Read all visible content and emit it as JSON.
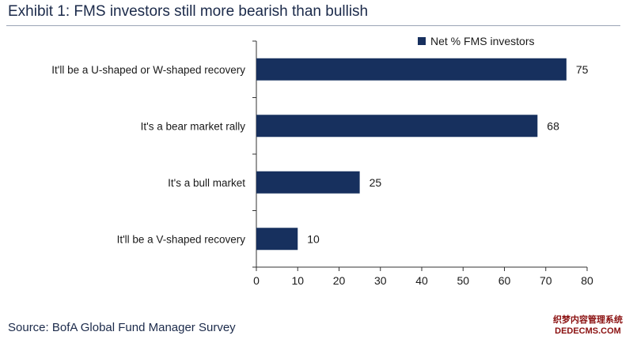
{
  "title": "Exhibit 1: FMS investors still more bearish than bullish",
  "source": "Source: BofA Global Fund Manager Survey",
  "watermark": {
    "line1": "织梦内容管理系统",
    "line2": "DEDECMS.COM"
  },
  "colors": {
    "bar": "#17305e",
    "axis": "#333333",
    "title": "#1b2a4a"
  },
  "chart_data": {
    "type": "bar",
    "orientation": "horizontal",
    "categories": [
      "It'll be a U-shaped or W-shaped recovery",
      "It's a bear market rally",
      "It's a bull market",
      "It'll be a V-shaped recovery"
    ],
    "series": [
      {
        "name": "Net % FMS investors",
        "values": [
          75,
          68,
          25,
          10
        ]
      }
    ],
    "xlim": [
      0,
      80
    ],
    "xticks": [
      0,
      10,
      20,
      30,
      40,
      50,
      60,
      70,
      80
    ],
    "grid": false,
    "legend": "top-right"
  }
}
